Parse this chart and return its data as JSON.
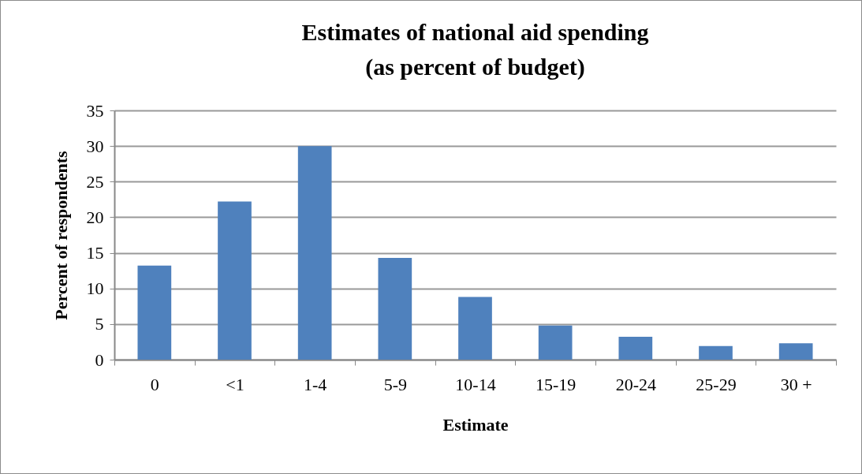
{
  "chart_data": {
    "type": "bar",
    "title": "Estimates of national aid spending\n(as percent of budget)",
    "xlabel": "Estimate",
    "ylabel": "Percent of respondents",
    "categories": [
      "0",
      "<1",
      "1-4",
      "5-9",
      "10-14",
      "15-19",
      "20-24",
      "25-29",
      "30 +"
    ],
    "values": [
      13.2,
      22.2,
      30.0,
      14.3,
      8.8,
      4.8,
      3.2,
      1.9,
      2.3
    ],
    "color": "#4f81bd",
    "ylim": [
      0,
      35
    ],
    "yticks": [
      0,
      5,
      10,
      15,
      20,
      25,
      30,
      35
    ],
    "grid": "y"
  }
}
